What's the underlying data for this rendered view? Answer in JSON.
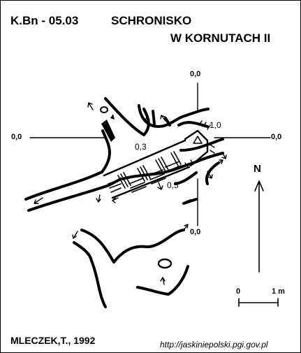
{
  "header": {
    "code": "K.Bn - 05.03",
    "name_line1": "SCHRONISKO",
    "name_line2": "W KORNUTACH II"
  },
  "datum_labels": {
    "top": "0,0",
    "left": "0,0",
    "right": "0,0",
    "bottom": "0,0"
  },
  "depth_labels": [
    "1,0",
    "0,3",
    "0,5"
  ],
  "north": {
    "label": "N"
  },
  "scale": {
    "start": "0",
    "end": "1 m"
  },
  "footer": {
    "author": "MLECZEK,T., 1992",
    "source": "http://jaskiniepolski.pgi.gov.pl"
  },
  "colors": {
    "ink": "#000000",
    "paper": "#ffffff"
  }
}
